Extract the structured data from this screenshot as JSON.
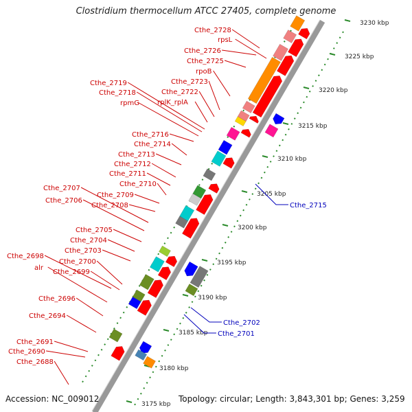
{
  "title": "Clostridium thermocellum ATCC 27405, complete genome",
  "footer": {
    "accession": "Accession: NC_009012",
    "summary": "Topology: circular; Length: 3,843,301 bp; Genes: 3,259"
  },
  "scale_labels": [
    "3230 kbp",
    "3225 kbp",
    "3220 kbp",
    "3215 kbp",
    "3210 kbp",
    "3205 kbp",
    "3200 kbp",
    "3195 kbp",
    "3190 kbp",
    "3185 kbp",
    "3180 kbp",
    "3175 kbp"
  ],
  "left_gene_labels": [
    "Cthe_2728",
    "rpsL",
    "Cthe_2726",
    "Cthe_2725",
    "rpoB",
    "Cthe_2723",
    "Cthe_2722",
    "rplK_rplA",
    "Cthe_2719",
    "Cthe_2718",
    "rpmG",
    "Cthe_2716",
    "Cthe_2714",
    "Cthe_2713",
    "Cthe_2712",
    "Cthe_2711",
    "Cthe_2710",
    "Cthe_2709",
    "Cthe_2708",
    "Cthe_2707",
    "Cthe_2706",
    "Cthe_2705",
    "Cthe_2704",
    "Cthe_2703",
    "Cthe_2700",
    "Cthe_2699",
    "Cthe_2698",
    "alr",
    "Cthe_2696",
    "Cthe_2694",
    "Cthe_2691",
    "Cthe_2690",
    "Cthe_2688"
  ],
  "right_gene_labels": [
    "Cthe_2715",
    "Cthe_2702",
    "Cthe_2701"
  ],
  "colors": {
    "forward_label": "#cc0000",
    "reverse_label": "#0000bb",
    "cds": "#ff0000",
    "backbone": "#999999",
    "scale_tick": "#2a8a2a"
  }
}
